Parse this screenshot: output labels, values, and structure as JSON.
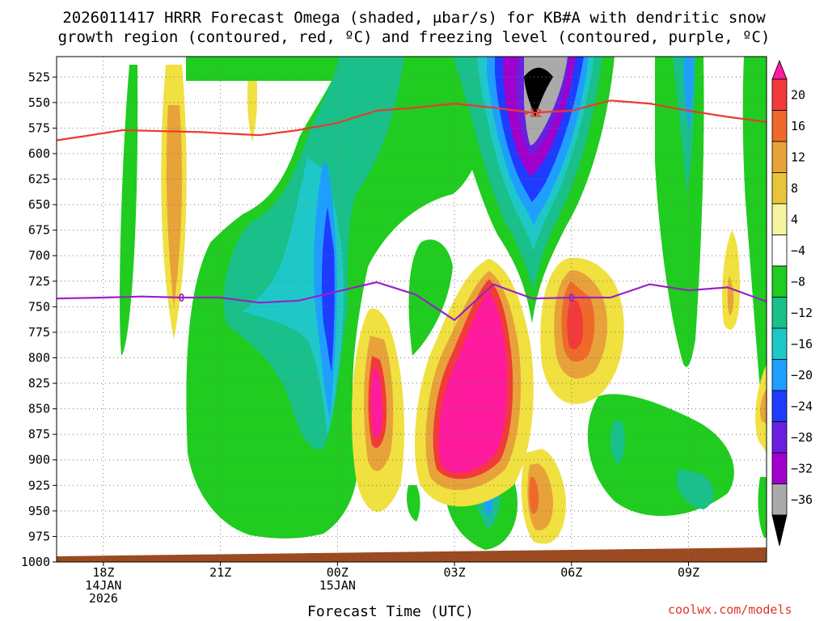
{
  "title_line1": "2026011417 HRRR Forecast Omega (shaded, μbar/s) for KB#A with dendritic snow",
  "title_line2": "growth region (contoured, red, ºC) and freezing level (contoured, purple, ºC)",
  "credit": "coolwx.com/models",
  "chart_data": {
    "type": "heatmap",
    "title": "2026011417 HRRR Forecast Omega (shaded, μbar/s) for KB#A with dendritic snow growth region (contoured, red, ºC) and freezing level (contoured, purple, ºC)",
    "xlabel": "Forecast Time (UTC)",
    "ylabel": "",
    "y_ticks": [
      525,
      550,
      575,
      600,
      625,
      650,
      675,
      700,
      725,
      750,
      775,
      800,
      825,
      850,
      875,
      900,
      925,
      950,
      975,
      1000
    ],
    "ylim": [
      1000,
      505
    ],
    "x_range_hours": [
      16.8,
      35.0
    ],
    "x_ticks": [
      {
        "hour": 18,
        "lines": [
          "18Z",
          "14JAN",
          "2026"
        ]
      },
      {
        "hour": 21,
        "lines": [
          "21Z"
        ]
      },
      {
        "hour": 24,
        "lines": [
          "00Z",
          "15JAN"
        ]
      },
      {
        "hour": 27,
        "lines": [
          "03Z"
        ]
      },
      {
        "hour": 30,
        "lines": [
          "06Z"
        ]
      },
      {
        "hour": 33,
        "lines": [
          "09Z"
        ]
      }
    ],
    "colorbar": {
      "labels": [
        "20",
        "16",
        "12",
        "8",
        "4",
        "−4",
        "−8",
        "−12",
        "−16",
        "−20",
        "−24",
        "−28",
        "−32",
        "−36"
      ],
      "colors": [
        "#f23a3a",
        "#ef6a2a",
        "#e8a23a",
        "#e8c43a",
        "#f5f5a0",
        "#ffffff",
        "#1fcc1f",
        "#19c08a",
        "#1ec8c8",
        "#1e9fff",
        "#1e3cff",
        "#6a1ee0",
        "#a000cc",
        "#aaaaaa"
      ],
      "top_color": "#ff1a9e",
      "bottom_color": "#000000"
    },
    "contours": [
      {
        "name": "dendritic growth -12ºC",
        "color": "#e83a30",
        "label": "-12",
        "points": [
          [
            16.8,
            587
          ],
          [
            17.5,
            583
          ],
          [
            18.5,
            577
          ],
          [
            19.5,
            578
          ],
          [
            20.5,
            579
          ],
          [
            21.5,
            581
          ],
          [
            22.0,
            582
          ],
          [
            23.0,
            577
          ],
          [
            24.0,
            570
          ],
          [
            25.0,
            558
          ],
          [
            26.0,
            555
          ],
          [
            27.0,
            551
          ],
          [
            28.0,
            555
          ],
          [
            29.0,
            560
          ],
          [
            30.0,
            558
          ],
          [
            31.0,
            548
          ],
          [
            32.0,
            551
          ],
          [
            33.0,
            558
          ],
          [
            34.0,
            564
          ],
          [
            35.0,
            569
          ]
        ]
      },
      {
        "name": "freezing level 0ºC",
        "color": "#9a20c8",
        "label": "0",
        "points": [
          [
            16.8,
            742
          ],
          [
            18.0,
            741
          ],
          [
            19.0,
            740
          ],
          [
            20.0,
            741
          ],
          [
            21.0,
            741
          ],
          [
            22.0,
            746
          ],
          [
            23.0,
            744
          ],
          [
            24.0,
            735
          ],
          [
            25.0,
            726
          ],
          [
            26.0,
            738
          ],
          [
            27.0,
            763
          ],
          [
            28.0,
            728
          ],
          [
            29.0,
            742
          ],
          [
            30.0,
            741
          ],
          [
            31.0,
            741
          ],
          [
            32.0,
            728
          ],
          [
            33.0,
            734
          ],
          [
            34.0,
            731
          ],
          [
            35.0,
            745
          ]
        ]
      }
    ]
  }
}
